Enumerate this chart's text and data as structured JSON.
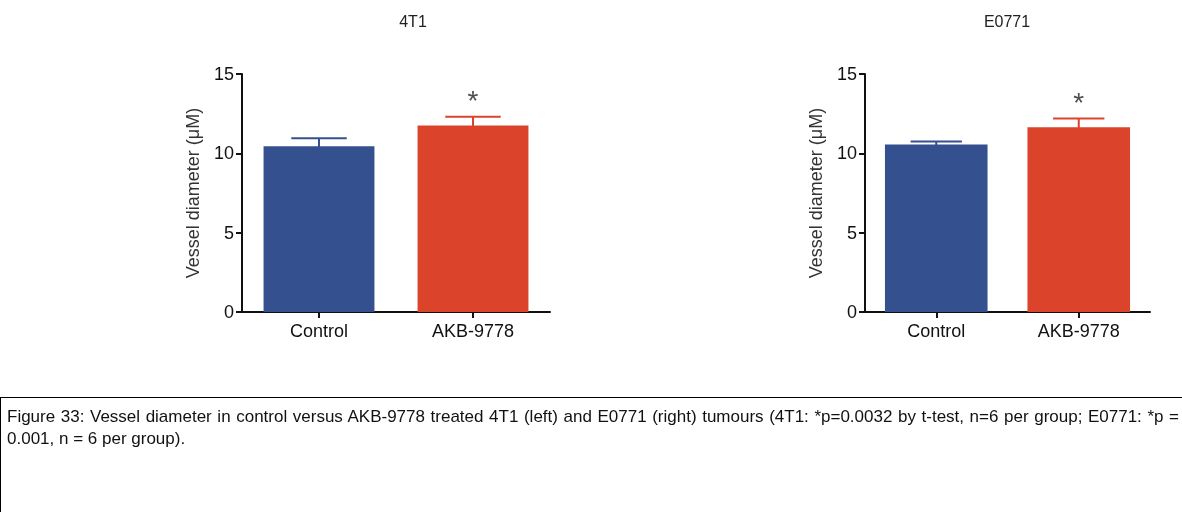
{
  "chart_data": [
    {
      "type": "bar",
      "title": "4T1",
      "ylabel": "Vessel diameter (μM)",
      "categories": [
        "Control",
        "AKB-9778"
      ],
      "values": [
        10.45,
        11.75
      ],
      "colors": [
        "#34508f",
        "#db432b"
      ],
      "errors": [
        0.5,
        0.55
      ],
      "ylim": [
        0,
        15
      ],
      "yticks": [
        0,
        5,
        10,
        15
      ],
      "grid": false,
      "annotations": [
        "*"
      ]
    },
    {
      "type": "bar",
      "title": "E0771",
      "ylabel": "Vessel diameter (μM)",
      "categories": [
        "Control",
        "AKB-9778"
      ],
      "values": [
        10.55,
        11.65
      ],
      "colors": [
        "#34508f",
        "#db432b"
      ],
      "errors": [
        0.2,
        0.55
      ],
      "ylim": [
        0,
        15
      ],
      "yticks": [
        0,
        5,
        10,
        15
      ],
      "grid": false,
      "annotations": [
        "*",
        "Figure 33: Vessel diameter in control versus AKB-9778 treated 4T1 (left) and E0771 (right) tumours (4T1: *p=0.0032 by t-test, n=6 per group; E0771: *p = 0.001, n = 6 per group)."
      ]
    }
  ]
}
